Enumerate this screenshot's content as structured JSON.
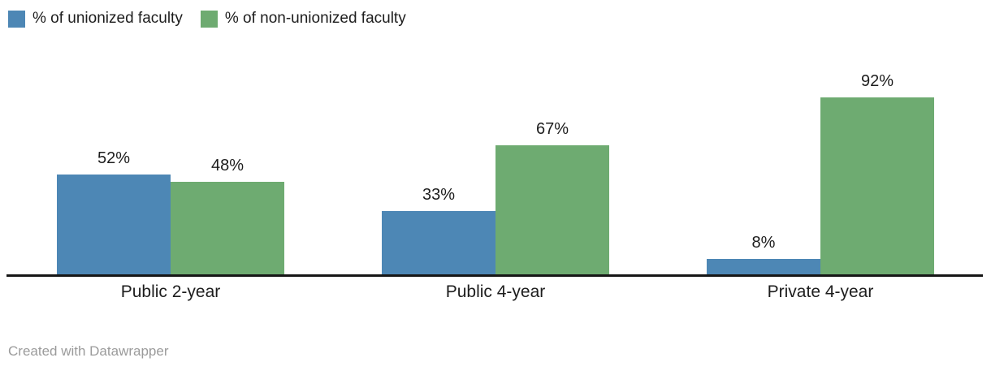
{
  "legend": {
    "items": [
      {
        "label": "% of unionized faculty",
        "color": "#4d87b5"
      },
      {
        "label": "% of non-unionized faculty",
        "color": "#6eab71"
      }
    ]
  },
  "footer": {
    "text": "Created with Datawrapper"
  },
  "chart_data": {
    "type": "bar",
    "title": "",
    "xlabel": "",
    "ylabel": "",
    "categories": [
      "Public 2-year",
      "Public 4-year",
      "Private 4-year"
    ],
    "series": [
      {
        "name": "% of unionized faculty",
        "color": "#4d87b5",
        "values": [
          52,
          33,
          8
        ]
      },
      {
        "name": "% of non-unionized faculty",
        "color": "#6eab71",
        "values": [
          48,
          67,
          92
        ]
      }
    ],
    "value_suffix": "%",
    "ylim": [
      0,
      100
    ],
    "grid": false,
    "legend_position": "top-left",
    "baseline_visible": true
  },
  "colors": {
    "axis_line": "#161616",
    "label_text": "#1d1d1d",
    "footer_text": "#9b9b9b"
  }
}
